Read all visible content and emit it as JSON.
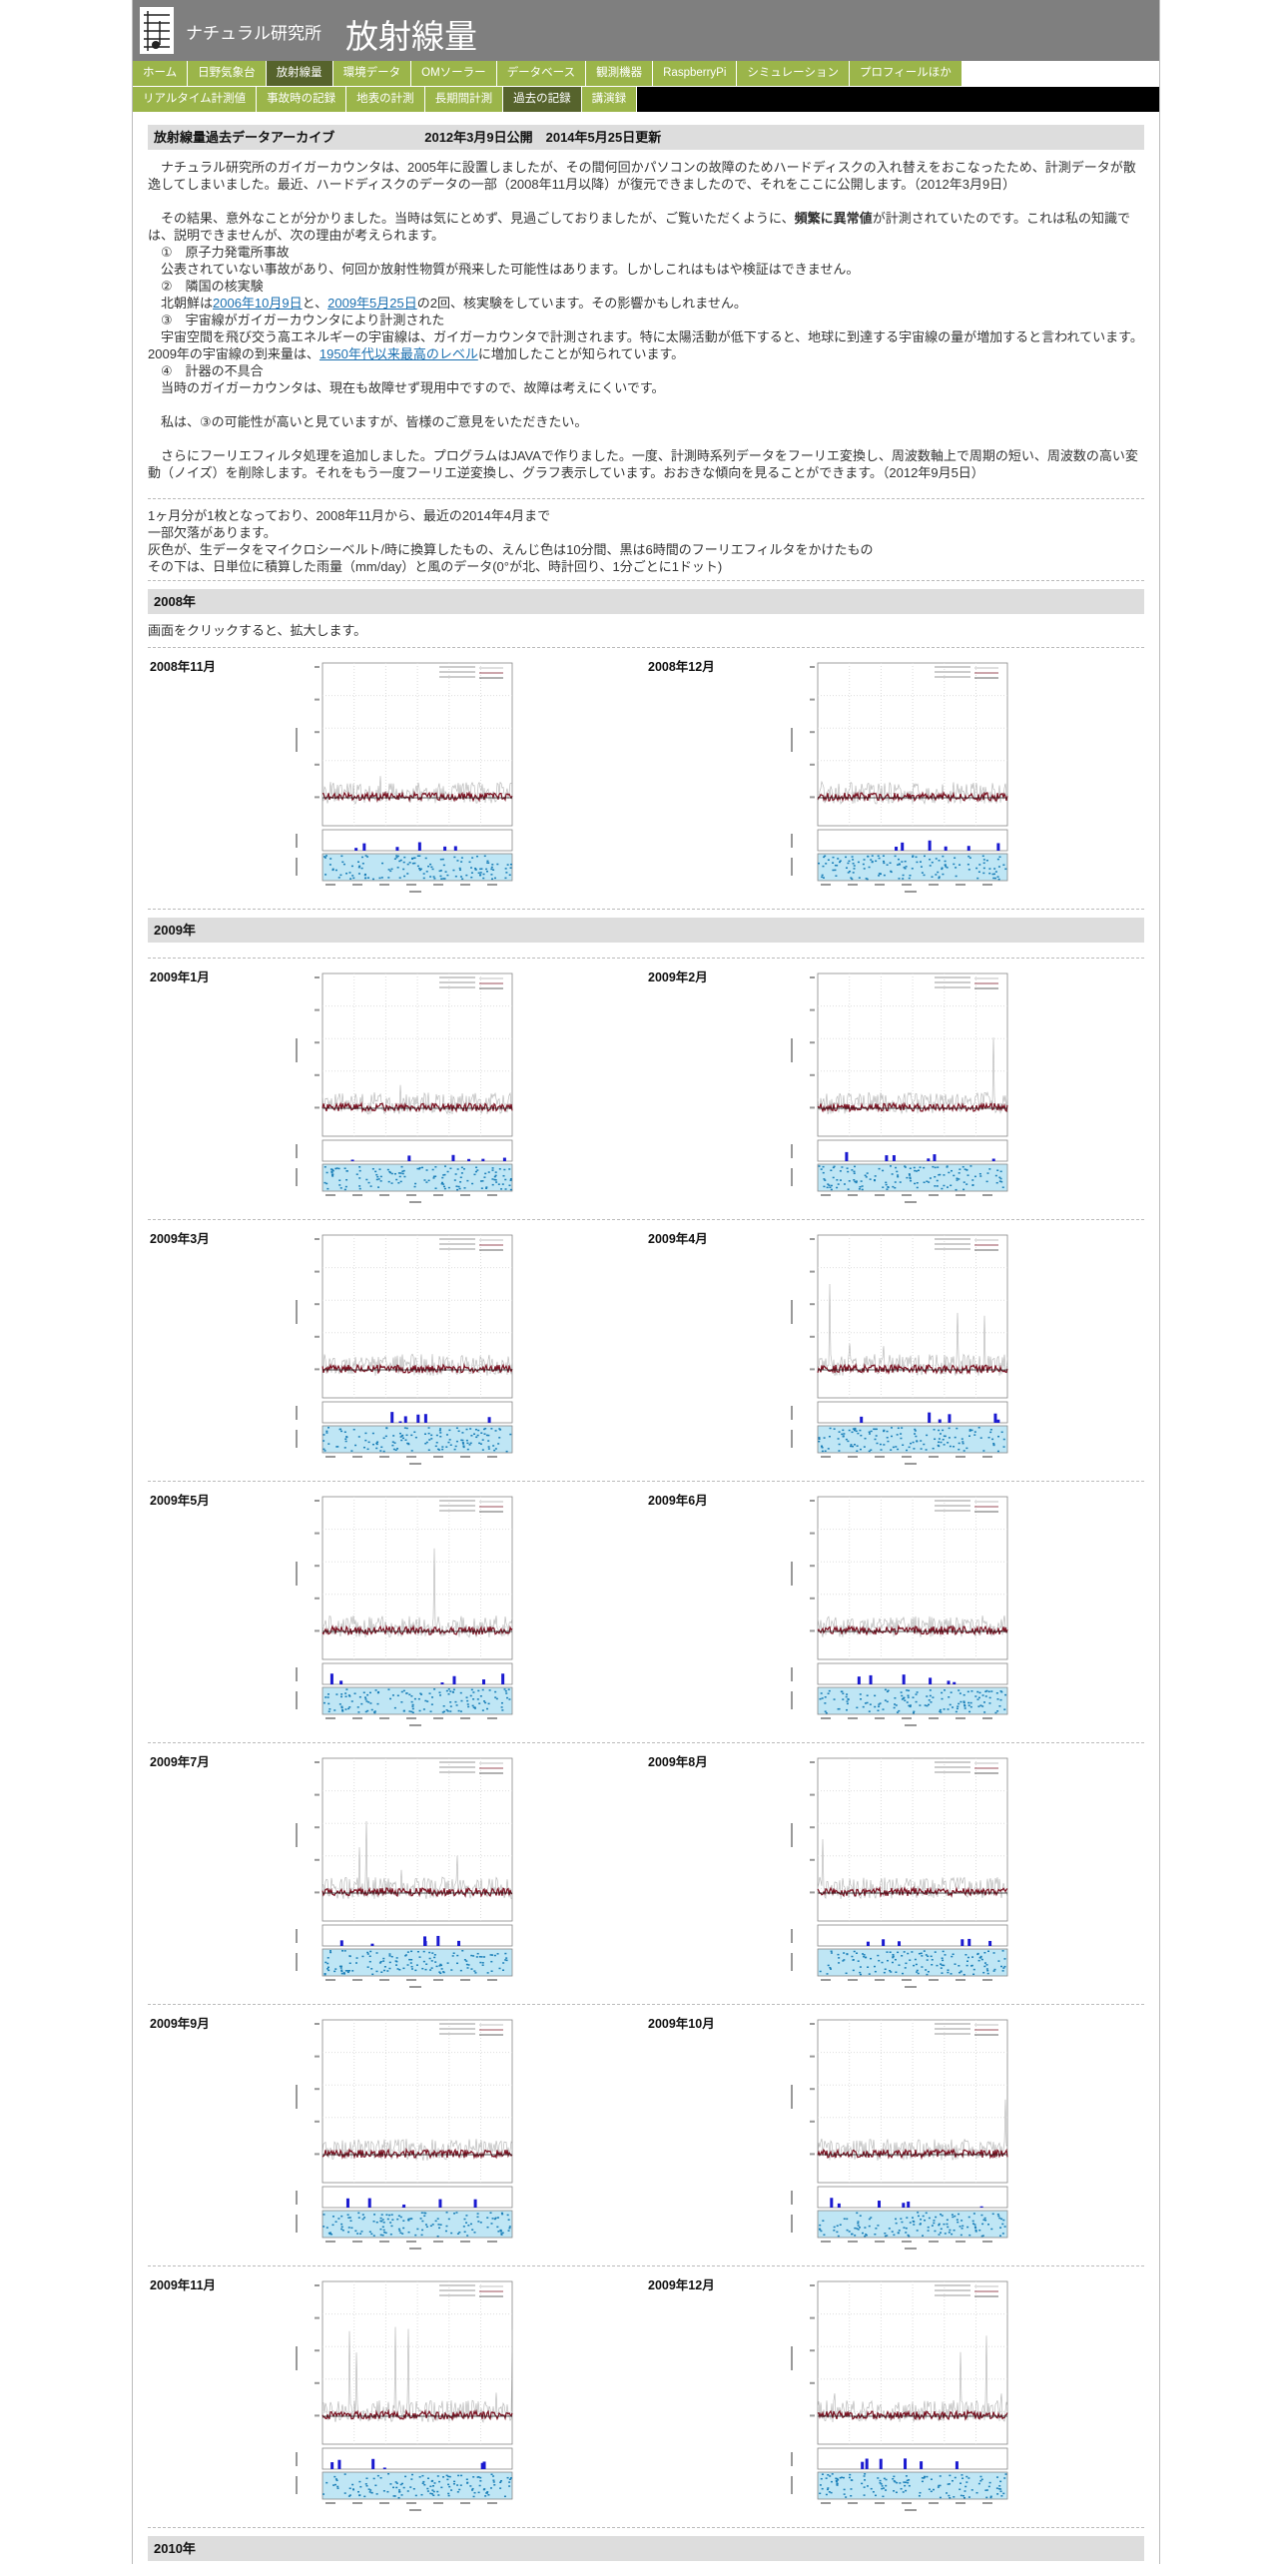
{
  "header": {
    "org": "ナチュラル研究所",
    "title": "放射線量"
  },
  "nav": {
    "main": [
      "ホーム",
      "日野気象台",
      "放射線量",
      "環境データ",
      "OMソーラー",
      "データベース",
      "観測機器",
      "RaspberryPi",
      "シミュレーション",
      "プロフィールほか"
    ],
    "main_active": 2,
    "sub": [
      "リアルタイム計測値",
      "事故時の記録",
      "地表の計測",
      "長期間計測",
      "過去の記録",
      "講演録"
    ],
    "sub_active": 4
  },
  "archive": {
    "heading": "放射線量過去データアーカイブ",
    "dates": "2012年3月9日公開　2014年5月25日更新",
    "paragraphs": [
      [
        [
          "ナチュラル研究所のガイガーカウンタは、2005年に設置しましたが、その間何回かパソコンの故障のためハードディスクの入れ替えをおこなったため、計測データが散逸してしまいました。最近、ハードディスクのデータの一部（2008年11月以降）が復元できましたので、それをここに公開します。（2012年3月9日）"
        ]
      ],
      [
        [
          "その結果、意外なことが分かりました。当時は気にとめず、見過ごしておりましたが、ご覧いただくように、",
          {
            "strong": "頻繁に異常値"
          },
          "が計測されていたのです。これは私の知識では、説明できませんが、次の理由が考えられます。"
        ],
        [
          "①　原子力発電所事故"
        ],
        [
          "公表されていない事故があり、何回か放射性物質が飛来した可能性はあります。しかしこれはもはや検証はできません。"
        ],
        [
          "②　隣国の核実験"
        ],
        [
          "北朝鮮は",
          {
            "link": "2006年10月9日"
          },
          "と、",
          {
            "link": "2009年5月25日"
          },
          "の2回、核実験をしています。その影響かもしれません。"
        ],
        [
          "③　宇宙線がガイガーカウンタにより計測された"
        ],
        [
          "宇宙空間を飛び交う高エネルギーの宇宙線は、ガイガーカウンタで計測されます。特に太陽活動が低下すると、地球に到達する宇宙線の量が増加すると言われています。2009年の宇宙線の到来量は、",
          {
            "link": "1950年代以来最高のレベル"
          },
          "に増加したことが知られています。"
        ],
        [
          "④　計器の不具合"
        ],
        [
          "当時のガイガーカウンタは、現在も故障せず現用中ですので、故障は考えにくいです。"
        ]
      ],
      [
        [
          "私は、③の可能性が高いと見ていますが、皆様のご意見をいただきたい。"
        ]
      ],
      [
        [
          "さらにフーリエフィルタ処理を追加しました。プログラムはJAVAで作りました。一度、計測時系列データをフーリエ変換し、周波数軸上で周期の短い、周波数の高い変動（ノイズ）を削除します。それをもう一度フーリエ逆変換し、グラフ表示しています。おおきな傾向を見ることができます。（2012年9月5日）"
        ]
      ]
    ],
    "notes": [
      "1ヶ月分が1枚となっており、2008年11月から、最近の2014年4月まで",
      "一部欠落があります。",
      "灰色が、生データをマイクロシーベルト/時に換算したもの、えんじ色は10分間、黒は6時間のフーリエフィルタをかけたもの",
      "その下は、日単位に積算した雨量（mm/day）と風のデータ(0°が北、時計回り、1分ごとに1ドット)"
    ]
  },
  "sections": [
    {
      "title": "2008年",
      "note": "画面をクリックすると、拡大します。",
      "months": [
        "2008年11月",
        "2008年12月"
      ]
    },
    {
      "title": "2009年",
      "months": [
        "2009年1月",
        "2009年2月",
        "2009年3月",
        "2009年4月",
        "2009年5月",
        "2009年6月",
        "2009年7月",
        "2009年8月",
        "2009年9月",
        "2009年10月",
        "2009年11月",
        "2009年12月"
      ]
    },
    {
      "title": "2010年",
      "months": []
    }
  ]
}
